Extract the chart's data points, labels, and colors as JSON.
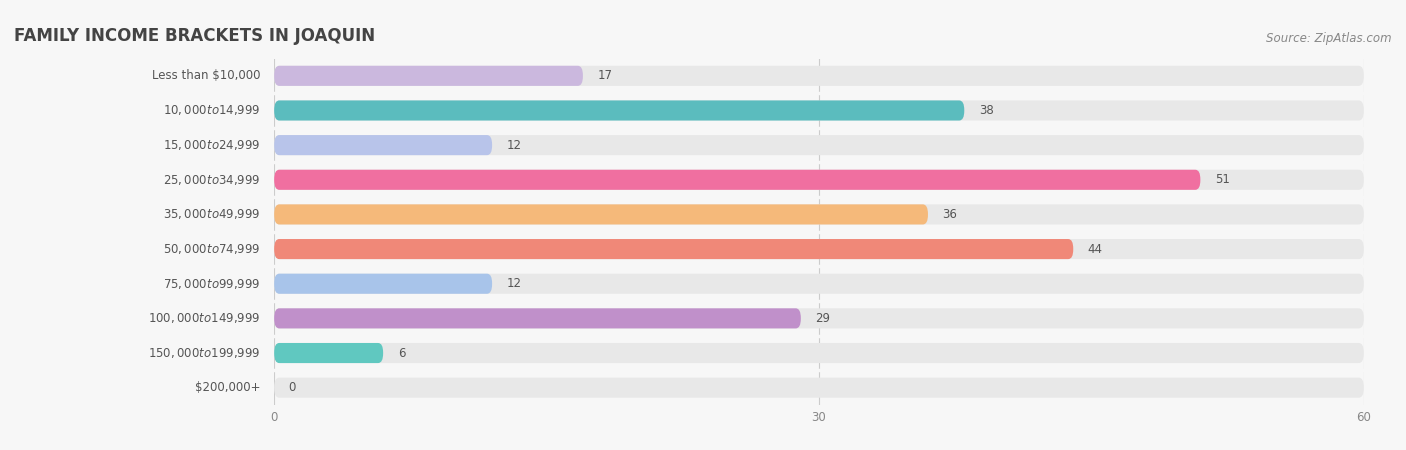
{
  "title": "FAMILY INCOME BRACKETS IN JOAQUIN",
  "source": "Source: ZipAtlas.com",
  "categories": [
    "Less than $10,000",
    "$10,000 to $14,999",
    "$15,000 to $24,999",
    "$25,000 to $34,999",
    "$35,000 to $49,999",
    "$50,000 to $74,999",
    "$75,000 to $99,999",
    "$100,000 to $149,999",
    "$150,000 to $199,999",
    "$200,000+"
  ],
  "values": [
    17,
    38,
    12,
    51,
    36,
    44,
    12,
    29,
    6,
    0
  ],
  "bar_colors": [
    "#cbb8de",
    "#5bbcbe",
    "#b8c4ea",
    "#f06fa0",
    "#f5b97a",
    "#f08878",
    "#a8c4ea",
    "#c090ca",
    "#60c8c0",
    "#c0c8f0"
  ],
  "xlim": [
    0,
    60
  ],
  "xticks": [
    0,
    30,
    60
  ],
  "background_color": "#f7f7f7",
  "bar_bg_color": "#e8e8e8",
  "title_fontsize": 12,
  "label_fontsize": 8.5,
  "value_fontsize": 8.5,
  "source_fontsize": 8.5,
  "bar_height": 0.58,
  "title_color": "#444444",
  "label_color": "#555555",
  "value_color": "#555555",
  "source_color": "#888888",
  "grid_color": "#cccccc",
  "tick_color": "#888888"
}
